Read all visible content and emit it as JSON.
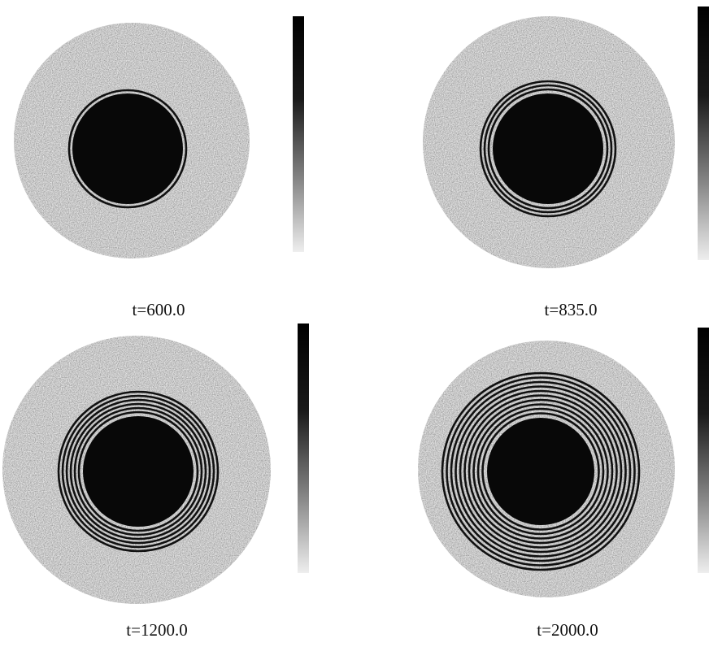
{
  "panels": [
    {
      "label": "t=600.0"
    },
    {
      "label": "t=835.0"
    },
    {
      "label": "t=1200.0"
    },
    {
      "label": "t=2000.0"
    }
  ]
}
